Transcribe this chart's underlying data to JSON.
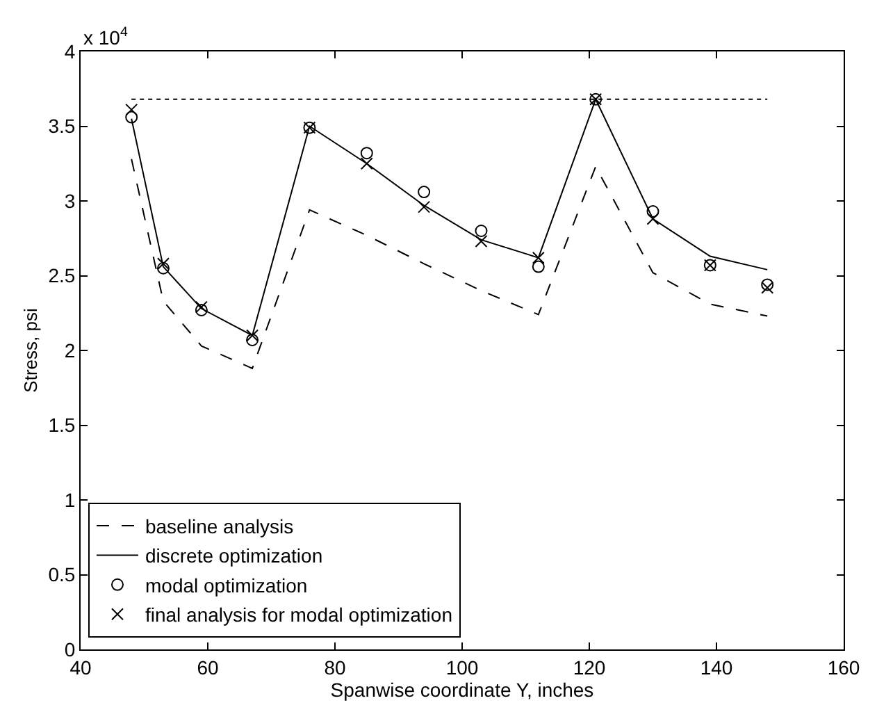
{
  "chart_data": {
    "type": "line",
    "xlabel": "Spanwise coordinate Y, inches",
    "ylabel": "Stress, psi",
    "annotations": [
      "x 10$^{4}$"
    ],
    "xlim": [
      40,
      160
    ],
    "xticks": [
      40,
      60,
      80,
      100,
      120,
      140,
      160
    ],
    "ylim": [
      0,
      4
    ],
    "yticks": [
      0,
      0.5,
      1,
      1.5,
      2,
      2.5,
      3,
      3.5,
      4
    ],
    "x": [
      48,
      53,
      59,
      67,
      76,
      85,
      94,
      103,
      112,
      121,
      130,
      139,
      148
    ],
    "legend": "bottom left",
    "series": [
      {
        "name": "baseline analysis",
        "line_style": "dashed",
        "marker": "none",
        "color": "#000000",
        "values": [
          3.28,
          2.33,
          2.03,
          1.88,
          2.94,
          2.77,
          2.58,
          2.4,
          2.24,
          3.23,
          2.52,
          2.31,
          2.23
        ]
      },
      {
        "name": "discrete optimization",
        "line_style": "solid",
        "marker": "none",
        "color": "#000000",
        "values": [
          3.55,
          2.56,
          2.28,
          2.1,
          3.5,
          3.25,
          2.97,
          2.74,
          2.62,
          3.68,
          2.88,
          2.63,
          2.54
        ]
      },
      {
        "name": "modal optimization",
        "type": "scatter",
        "marker": "circle",
        "color": "#000000",
        "values": [
          3.56,
          2.55,
          2.27,
          2.07,
          3.49,
          3.32,
          3.06,
          2.8,
          2.56,
          3.68,
          2.93,
          2.57,
          2.44
        ]
      },
      {
        "name": "final analysis for modal optimization",
        "type": "scatter",
        "marker": "cross",
        "color": "#000000",
        "values": [
          3.61,
          2.58,
          2.29,
          2.1,
          3.49,
          3.25,
          2.96,
          2.73,
          2.62,
          3.68,
          2.88,
          2.57,
          2.42
        ]
      },
      {
        "line_style": "dotted",
        "marker": "none",
        "color": "#000000",
        "x": [
          48,
          148
        ],
        "values": [
          3.68,
          3.68
        ]
      }
    ]
  }
}
